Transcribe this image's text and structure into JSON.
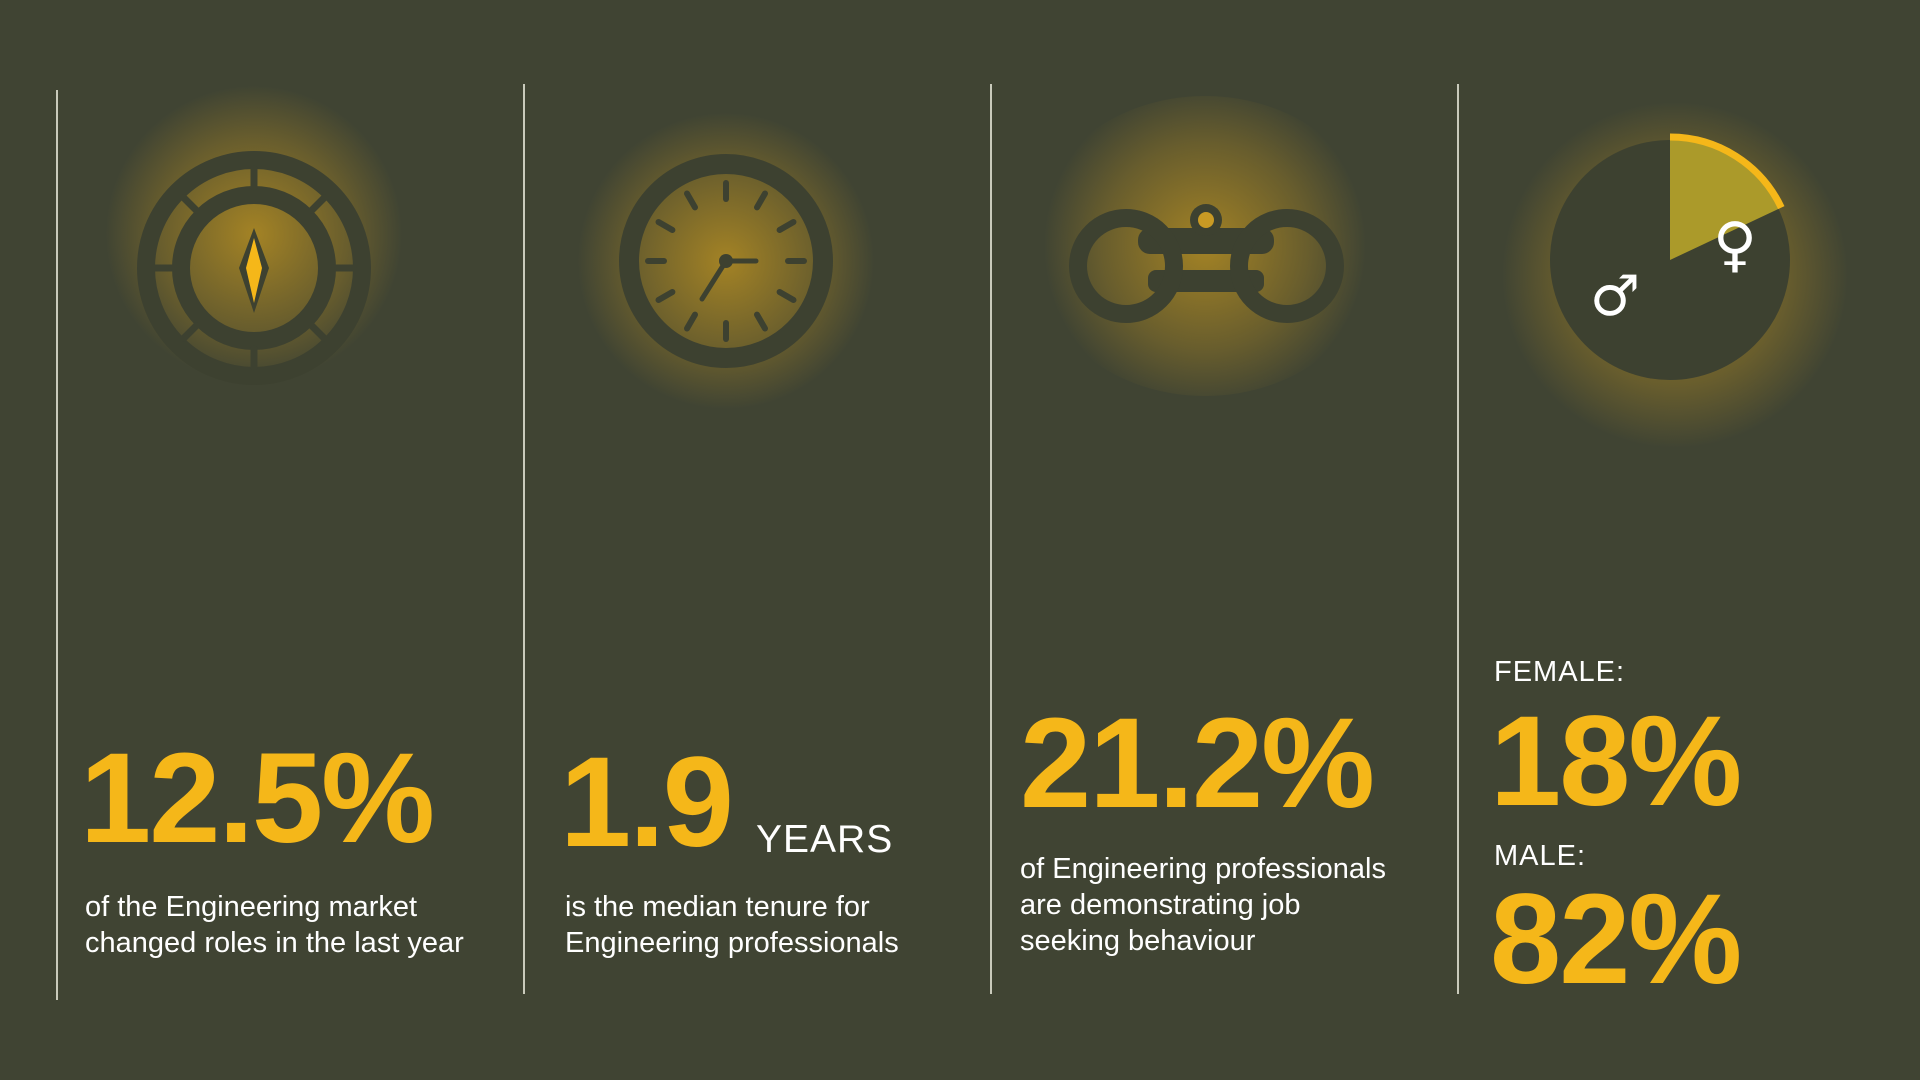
{
  "colors": {
    "background": "#404433",
    "accent": "#f5b719",
    "icon_dark": "#3d4130",
    "female_slice": "#ab9a2a",
    "text": "#ffffff",
    "divider": "#c9cabb"
  },
  "panels": [
    {
      "icon": "compass-icon",
      "value": "12.5%",
      "unit": "",
      "description_lines": [
        "of the Engineering  market",
        "changed roles in the last year"
      ]
    },
    {
      "icon": "clock-icon",
      "value": "1.9",
      "unit": "YEARS",
      "description_lines": [
        "is the median tenure for",
        "Engineering professionals"
      ]
    },
    {
      "icon": "binoculars-icon",
      "value": "21.2%",
      "unit": "",
      "description_lines": [
        "of Engineering professionals",
        "are demonstrating job",
        "seeking behaviour"
      ]
    },
    {
      "icon": "gender-pie-icon",
      "female_label": "FEMALE:",
      "female_value": "18%",
      "male_label": "MALE:",
      "male_value": "82%",
      "female_symbol": "♀",
      "male_symbol": "♂"
    }
  ],
  "chart_data": {
    "type": "pie",
    "categories": [
      "Female",
      "Male"
    ],
    "values": [
      18,
      82
    ]
  }
}
